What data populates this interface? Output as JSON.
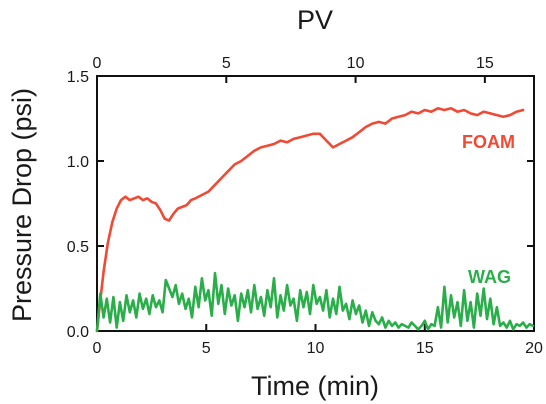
{
  "chart_data": {
    "type": "line",
    "xlabel": "Time (min)",
    "ylabel": "Pressure Drop (psi)",
    "x2label": "PV",
    "xlim": [
      0,
      20
    ],
    "ylim": [
      0,
      1.5
    ],
    "x2lim": [
      0,
      16.9
    ],
    "xticks": [
      0,
      5,
      10,
      15,
      20
    ],
    "yticks": [
      0.0,
      0.5,
      1.0,
      1.5
    ],
    "x2ticks": [
      0,
      5,
      10,
      15
    ],
    "xtick_labels": [
      "0",
      "5",
      "10",
      "15",
      "20"
    ],
    "ytick_labels": [
      "0.0",
      "0.5",
      "1.0",
      "1.5"
    ],
    "x2tick_labels": [
      "0",
      "5",
      "10",
      "15"
    ],
    "grid": false,
    "series": [
      {
        "name": "FOAM",
        "color": "#f04a35",
        "x": [
          0,
          0.15,
          0.3,
          0.5,
          0.7,
          0.9,
          1.1,
          1.3,
          1.5,
          1.7,
          1.9,
          2.1,
          2.3,
          2.5,
          2.7,
          2.9,
          3.1,
          3.3,
          3.5,
          3.7,
          3.9,
          4.1,
          4.3,
          4.5,
          4.8,
          5.1,
          5.4,
          5.7,
          6.0,
          6.3,
          6.6,
          6.9,
          7.2,
          7.5,
          7.8,
          8.1,
          8.4,
          8.7,
          9.0,
          9.3,
          9.6,
          9.9,
          10.2,
          10.5,
          10.8,
          11.1,
          11.4,
          11.7,
          12.0,
          12.3,
          12.6,
          12.9,
          13.2,
          13.5,
          13.8,
          14.1,
          14.4,
          14.7,
          15.0,
          15.3,
          15.6,
          15.9,
          16.2,
          16.5,
          16.8,
          17.1,
          17.4,
          17.7,
          18.0,
          18.3,
          18.6,
          18.9,
          19.2,
          19.5
        ],
        "y": [
          0.0,
          0.18,
          0.35,
          0.52,
          0.64,
          0.72,
          0.77,
          0.79,
          0.77,
          0.78,
          0.79,
          0.77,
          0.78,
          0.76,
          0.75,
          0.71,
          0.66,
          0.65,
          0.69,
          0.72,
          0.73,
          0.74,
          0.77,
          0.78,
          0.8,
          0.82,
          0.86,
          0.9,
          0.94,
          0.98,
          1.0,
          1.03,
          1.06,
          1.08,
          1.09,
          1.1,
          1.12,
          1.11,
          1.13,
          1.14,
          1.15,
          1.16,
          1.16,
          1.12,
          1.08,
          1.1,
          1.12,
          1.14,
          1.17,
          1.2,
          1.22,
          1.23,
          1.22,
          1.25,
          1.26,
          1.27,
          1.29,
          1.28,
          1.3,
          1.29,
          1.31,
          1.3,
          1.31,
          1.29,
          1.3,
          1.28,
          1.27,
          1.29,
          1.28,
          1.27,
          1.26,
          1.27,
          1.29,
          1.3
        ],
        "label_text": "FOAM"
      },
      {
        "name": "WAG",
        "color": "#2aae4a",
        "x": [
          0,
          0.15,
          0.3,
          0.45,
          0.6,
          0.75,
          0.9,
          1.05,
          1.2,
          1.35,
          1.5,
          1.65,
          1.8,
          1.95,
          2.1,
          2.25,
          2.4,
          2.55,
          2.7,
          2.85,
          3.0,
          3.15,
          3.3,
          3.45,
          3.6,
          3.75,
          3.9,
          4.05,
          4.2,
          4.35,
          4.5,
          4.65,
          4.8,
          4.95,
          5.1,
          5.25,
          5.4,
          5.55,
          5.7,
          5.85,
          6.0,
          6.15,
          6.3,
          6.45,
          6.6,
          6.75,
          6.9,
          7.05,
          7.2,
          7.35,
          7.5,
          7.65,
          7.8,
          7.95,
          8.1,
          8.25,
          8.4,
          8.55,
          8.7,
          8.85,
          9.0,
          9.15,
          9.3,
          9.45,
          9.6,
          9.75,
          9.9,
          10.05,
          10.2,
          10.35,
          10.5,
          10.65,
          10.8,
          10.95,
          11.1,
          11.25,
          11.4,
          11.55,
          11.7,
          11.85,
          12.0,
          12.15,
          12.3,
          12.45,
          12.6,
          12.75,
          12.9,
          13.05,
          13.2,
          13.35,
          13.5,
          13.65,
          13.8,
          13.95,
          14.1,
          14.25,
          14.4,
          14.55,
          14.7,
          14.85,
          15.0,
          15.15,
          15.3,
          15.45,
          15.6,
          15.75,
          15.9,
          16.05,
          16.2,
          16.35,
          16.5,
          16.65,
          16.8,
          16.95,
          17.1,
          17.25,
          17.4,
          17.55,
          17.7,
          17.85,
          18.0,
          18.15,
          18.3,
          18.45,
          18.6,
          18.75,
          18.9,
          19.05,
          19.2,
          19.35,
          19.5,
          19.65,
          19.8,
          19.95
        ],
        "y": [
          0.0,
          0.22,
          0.08,
          0.19,
          0.05,
          0.2,
          0.02,
          0.17,
          0.06,
          0.21,
          0.11,
          0.18,
          0.08,
          0.22,
          0.13,
          0.19,
          0.1,
          0.21,
          0.14,
          0.18,
          0.11,
          0.3,
          0.25,
          0.2,
          0.27,
          0.16,
          0.22,
          0.13,
          0.19,
          0.08,
          0.26,
          0.14,
          0.31,
          0.18,
          0.24,
          0.09,
          0.34,
          0.16,
          0.27,
          0.1,
          0.25,
          0.15,
          0.21,
          0.06,
          0.22,
          0.14,
          0.24,
          0.11,
          0.27,
          0.13,
          0.2,
          0.09,
          0.24,
          0.14,
          0.31,
          0.08,
          0.21,
          0.12,
          0.27,
          0.15,
          0.19,
          0.06,
          0.24,
          0.14,
          0.23,
          0.1,
          0.27,
          0.16,
          0.2,
          0.12,
          0.24,
          0.08,
          0.19,
          0.1,
          0.26,
          0.12,
          0.16,
          0.07,
          0.18,
          0.1,
          0.15,
          0.05,
          0.12,
          0.03,
          0.11,
          0.06,
          0.04,
          0.08,
          0.02,
          0.06,
          0.03,
          0.05,
          0.02,
          0.04,
          0.03,
          0.02,
          0.05,
          0.03,
          0.01,
          0.03,
          0.06,
          0.01,
          0.04,
          0.03,
          0.14,
          0.02,
          0.26,
          0.05,
          0.21,
          0.08,
          0.17,
          0.03,
          0.24,
          0.06,
          0.17,
          0.02,
          0.22,
          0.09,
          0.25,
          0.07,
          0.19,
          0.04,
          0.14,
          0.03,
          0.05,
          0.02,
          0.06,
          0.01,
          0.04,
          0.03,
          0.05,
          0.02,
          0.04,
          0.03
        ],
        "label_text": "WAG"
      }
    ]
  }
}
